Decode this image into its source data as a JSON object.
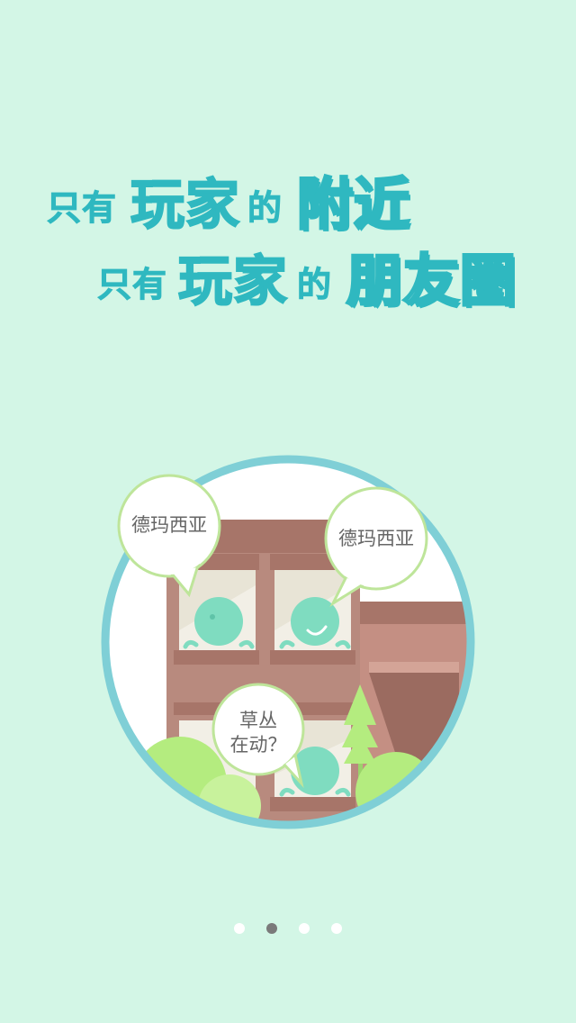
{
  "headline": {
    "line1": {
      "part1": "只有",
      "part2": "玩家",
      "part3": "的",
      "part4": "附近"
    },
    "line2": {
      "part1": "只有",
      "part2": "玩家",
      "part3": "的",
      "part4": "朋友圈"
    }
  },
  "bubbles": {
    "left": "德玛西亚",
    "right": "德玛西亚",
    "bottom_line1": "草丛",
    "bottom_line2": "在动？"
  },
  "pagination": {
    "total": 4,
    "active_index": 1
  },
  "colors": {
    "background": "#d3f6e6",
    "title_teal": "#2fb8c0",
    "circle_border": "#7fcfd6",
    "building": "#b88a7e",
    "roof": "#a77569",
    "window": "#f2efe6",
    "alien": "#7fdcc0",
    "tree": "#b4ec7f",
    "active_dot": "#7a7a7a"
  }
}
